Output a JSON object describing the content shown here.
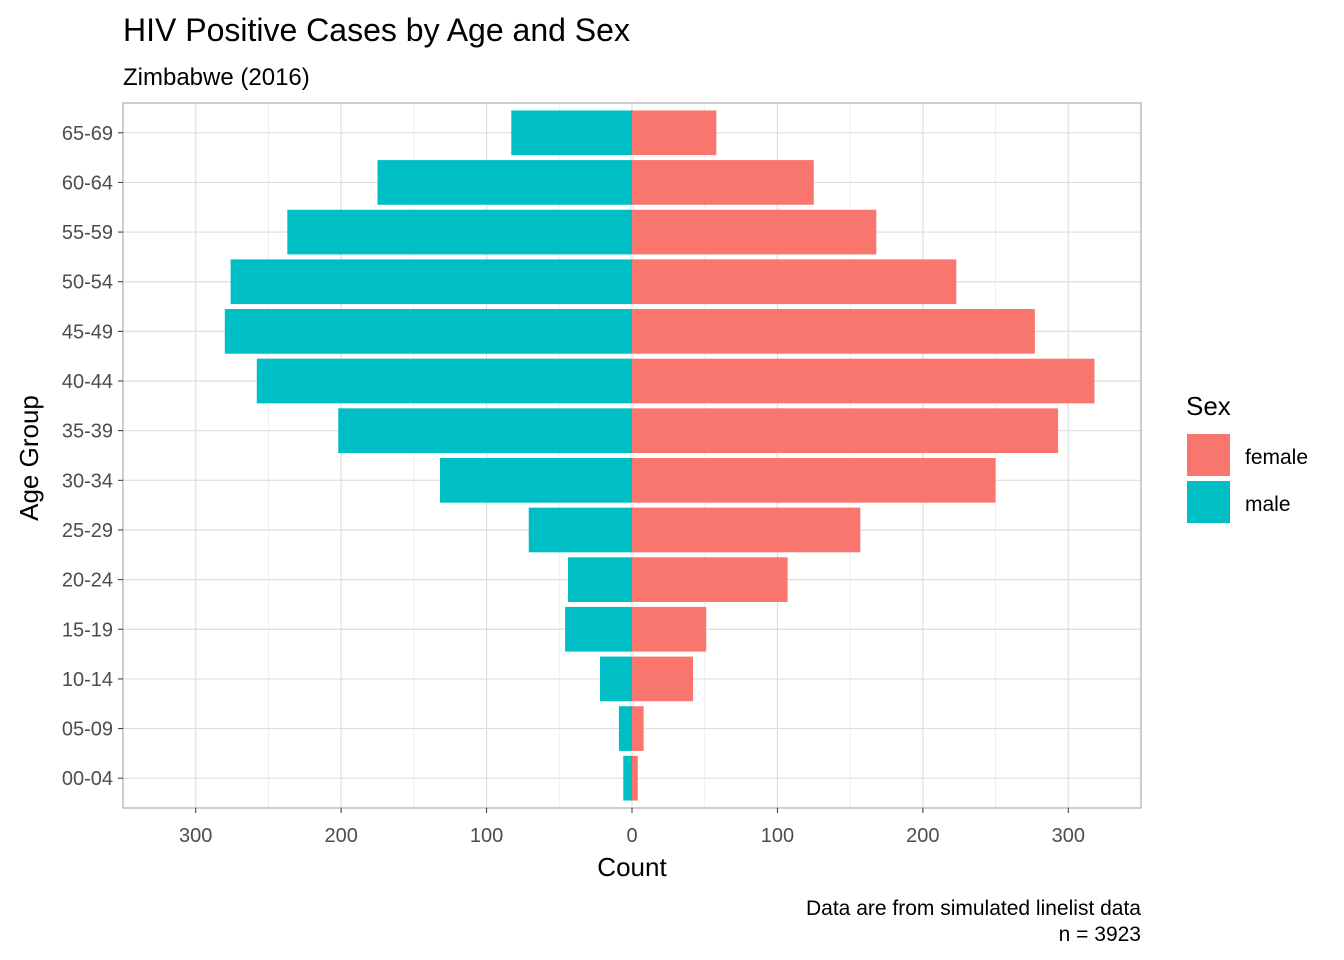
{
  "chart_data": {
    "type": "bar",
    "orientation": "horizontal",
    "title": "HIV Positive Cases by Age and Sex",
    "subtitle": "Zimbabwe (2016)",
    "xlabel": "Count",
    "ylabel": "Age Group",
    "categories": [
      "00-04",
      "05-09",
      "10-14",
      "15-19",
      "20-24",
      "25-29",
      "30-34",
      "35-39",
      "40-44",
      "45-49",
      "50-54",
      "55-59",
      "60-64",
      "65-69"
    ],
    "series": [
      {
        "name": "female",
        "color": "#F8766D",
        "values": [
          4,
          8,
          42,
          51,
          107,
          157,
          250,
          293,
          318,
          277,
          223,
          168,
          125,
          58
        ]
      },
      {
        "name": "male",
        "color": "#00BFC4",
        "values": [
          6,
          9,
          22,
          46,
          44,
          71,
          132,
          202,
          258,
          280,
          276,
          237,
          175,
          83
        ]
      }
    ],
    "xlim": [
      -350,
      350
    ],
    "x_tick_values": [
      -300,
      -200,
      -100,
      0,
      100,
      200,
      300
    ],
    "x_tick_labels": [
      "300",
      "200",
      "100",
      "0",
      "100",
      "200",
      "300"
    ],
    "grid": true,
    "legend": {
      "title": "Sex",
      "position": "right"
    },
    "caption_lines": [
      "Data are from simulated linelist data",
      "n = 3923"
    ]
  }
}
